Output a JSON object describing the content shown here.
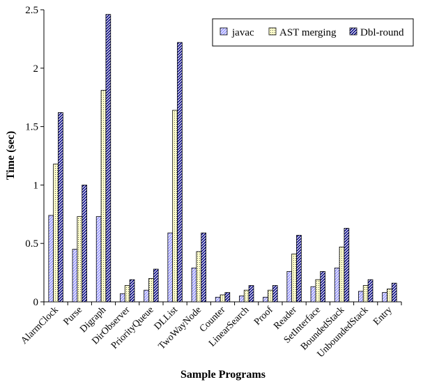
{
  "chart_data": {
    "type": "bar",
    "title": "",
    "xlabel": "Sample Programs",
    "ylabel": "Time (sec)",
    "ylim": [
      0,
      2.5
    ],
    "yticks": [
      "0",
      "0.5",
      "1",
      "1.5",
      "2",
      "2.5"
    ],
    "grid": false,
    "legend_position": "top-right",
    "categories": [
      "AlarmClock",
      "Purse",
      "Digraph",
      "DirObserver",
      "PriorityQueue",
      "DLList",
      "TwoWayNode",
      "Counter",
      "LinearSearch",
      "Proof",
      "Reader",
      "SetInterface",
      "BoundedStack",
      "UnboundedStack",
      "Entry"
    ],
    "series": [
      {
        "name": "javac",
        "color": "#9999ff",
        "pattern": "diagonal-light",
        "values": [
          0.74,
          0.45,
          0.73,
          0.07,
          0.1,
          0.59,
          0.29,
          0.04,
          0.05,
          0.04,
          0.26,
          0.13,
          0.29,
          0.09,
          0.08
        ]
      },
      {
        "name": "AST merging",
        "color": "#ffffcc",
        "pattern": "dots",
        "values": [
          1.18,
          0.73,
          1.81,
          0.14,
          0.2,
          1.64,
          0.43,
          0.06,
          0.1,
          0.1,
          0.41,
          0.19,
          0.47,
          0.14,
          0.11
        ]
      },
      {
        "name": "Dbl-round",
        "color": "#000080",
        "pattern": "diagonal-dark",
        "values": [
          1.62,
          1.0,
          2.46,
          0.19,
          0.28,
          2.22,
          0.59,
          0.08,
          0.14,
          0.14,
          0.57,
          0.26,
          0.63,
          0.19,
          0.16
        ]
      }
    ]
  }
}
